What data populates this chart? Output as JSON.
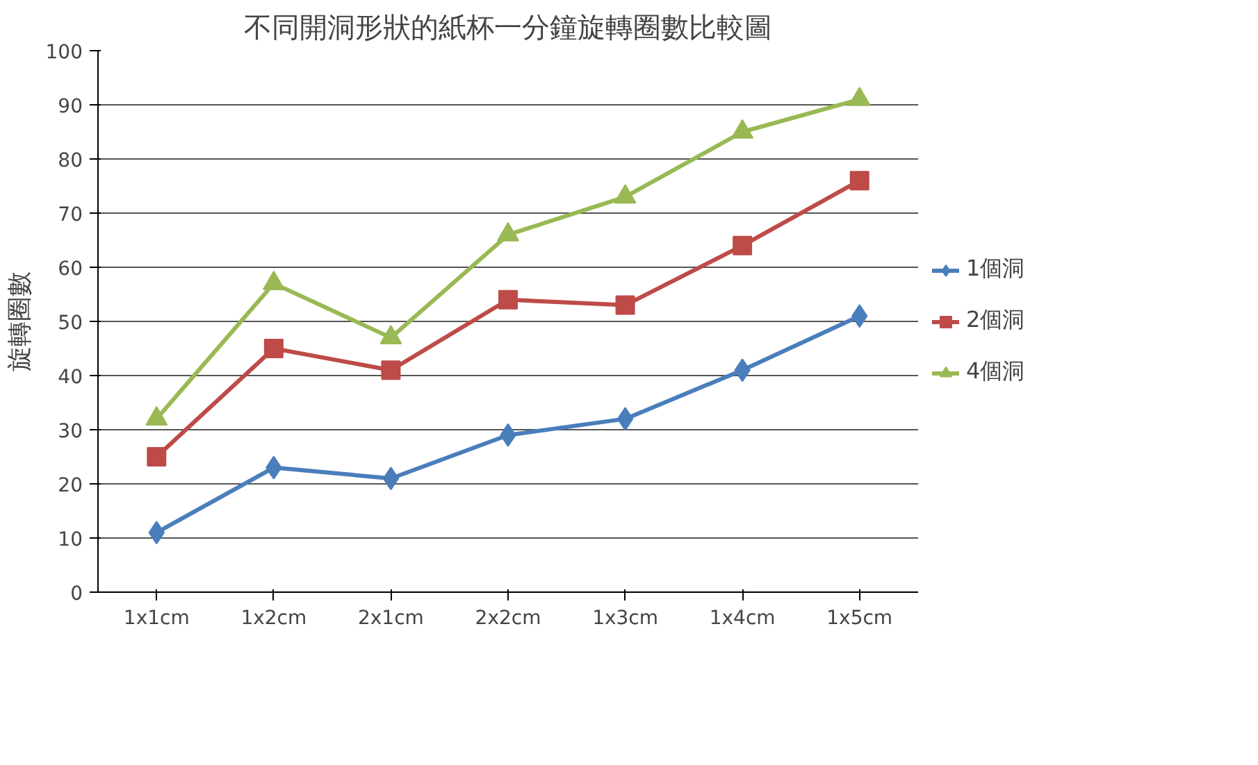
{
  "chart_data": {
    "type": "line",
    "title": "不同開洞形狀的紙杯一分鐘旋轉圈數比較圖",
    "ylabel": "旋轉圈數",
    "categories": [
      "1x1cm",
      "1x2cm",
      "2x1cm",
      "2x2cm",
      "1x3cm",
      "1x4cm",
      "1x5cm"
    ],
    "series": [
      {
        "name": "1個洞",
        "color": "#4a7ebb",
        "marker": "diamond",
        "values": [
          11,
          23,
          21,
          29,
          32,
          41,
          51
        ]
      },
      {
        "name": "2個洞",
        "color": "#be4b48",
        "marker": "square",
        "values": [
          25,
          45,
          41,
          54,
          53,
          64,
          76
        ]
      },
      {
        "name": "4個洞",
        "color": "#98b954",
        "marker": "triangle",
        "values": [
          32,
          57,
          47,
          66,
          73,
          85,
          91
        ]
      }
    ],
    "ylim": [
      0,
      100
    ],
    "yticks": [
      0,
      10,
      20,
      30,
      40,
      50,
      60,
      70,
      80,
      90,
      100
    ],
    "grid": "y",
    "legend": "right"
  }
}
